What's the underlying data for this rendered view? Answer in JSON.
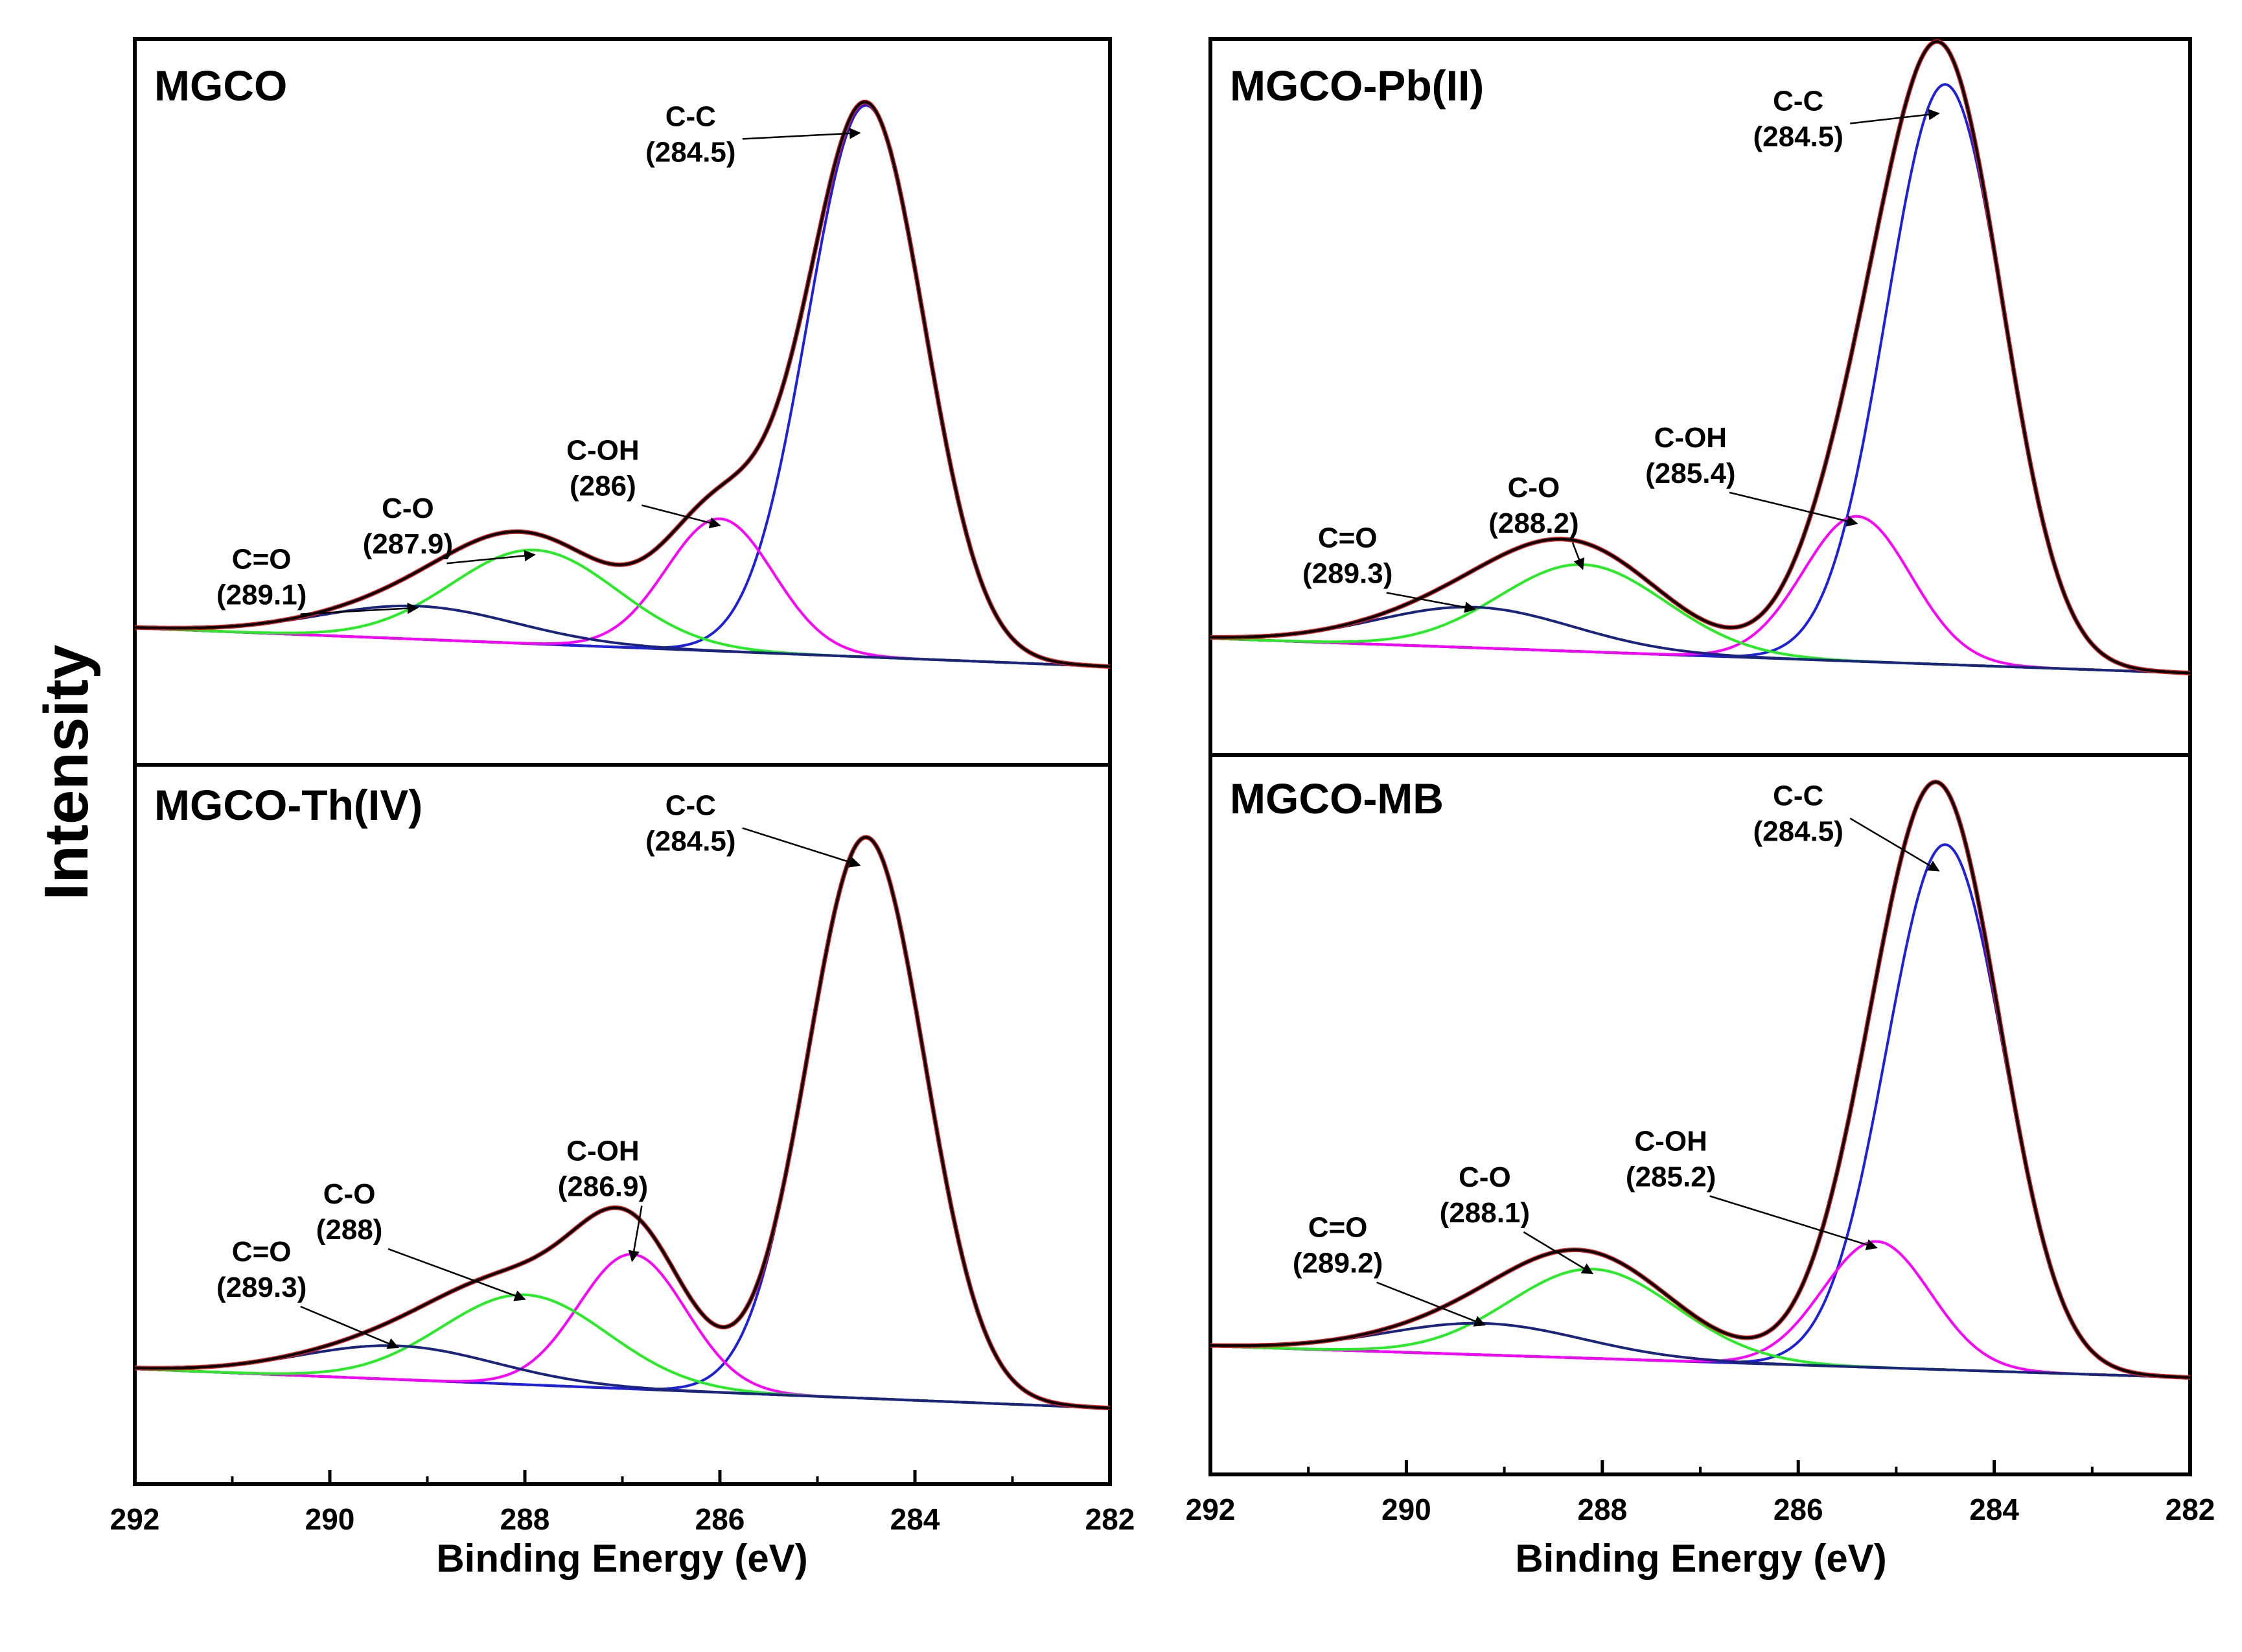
{
  "figure": {
    "ylabel": "Intensity",
    "xlabel": "Binding Energy (eV)"
  },
  "colors": {
    "envelope": "#000000",
    "fit": "#e41a1c",
    "baseline": "#1a237e",
    "C-C": "#1f1fe0",
    "C-OH": "#ff00ff",
    "C-O": "#22ee22",
    "C=O": "#1a237e"
  },
  "chart_data": [
    {
      "type": "line",
      "title": "MGCO",
      "xlabel": "Binding Energy (eV)",
      "ylabel": "Intensity",
      "xlim": [
        292,
        282
      ],
      "xticks": [
        292,
        290,
        288,
        286,
        284,
        282
      ],
      "xtick_labels": [
        "292",
        "290",
        "288",
        "286",
        "284",
        "282"
      ],
      "show_xticks": false,
      "baseline": [
        0.09,
        0.02
      ],
      "components": [
        {
          "name": "C-C",
          "center": 284.5,
          "amplitude": 1.0,
          "sigma": 0.6
        },
        {
          "name": "C-OH",
          "center": 286.0,
          "amplitude": 0.24,
          "sigma": 0.55
        },
        {
          "name": "C-O",
          "center": 287.9,
          "amplitude": 0.17,
          "sigma": 0.85
        },
        {
          "name": "C=O",
          "center": 289.1,
          "amplitude": 0.06,
          "sigma": 1.0
        }
      ],
      "annotations": [
        {
          "label": "C-C",
          "value": "(284.5)"
        },
        {
          "label": "C-OH",
          "value": "(286)"
        },
        {
          "label": "C-O",
          "value": "(287.9)"
        },
        {
          "label": "C=O",
          "value": "(289.1)"
        }
      ]
    },
    {
      "type": "line",
      "title": "MGCO-Pb(II)",
      "xlabel": "Binding Energy (eV)",
      "ylabel": "Intensity",
      "xlim": [
        292,
        282
      ],
      "xticks": [
        292,
        290,
        288,
        286,
        284,
        282
      ],
      "xtick_labels": [
        "292",
        "290",
        "288",
        "286",
        "284",
        "282"
      ],
      "show_xticks": false,
      "baseline": [
        0.09,
        0.03
      ],
      "components": [
        {
          "name": "C-C",
          "center": 284.5,
          "amplitude": 1.0,
          "sigma": 0.6
        },
        {
          "name": "C-OH",
          "center": 285.4,
          "amplitude": 0.25,
          "sigma": 0.55
        },
        {
          "name": "C-O",
          "center": 288.2,
          "amplitude": 0.15,
          "sigma": 0.85
        },
        {
          "name": "C=O",
          "center": 289.3,
          "amplitude": 0.07,
          "sigma": 1.0
        }
      ],
      "annotations": [
        {
          "label": "C-C",
          "value": "(284.5)"
        },
        {
          "label": "C-OH",
          "value": "(285.4)"
        },
        {
          "label": "C-O",
          "value": "(288.2)"
        },
        {
          "label": "C=O",
          "value": "(289.3)"
        }
      ]
    },
    {
      "type": "line",
      "title": "MGCO-Th(IV)",
      "xlabel": "Binding Energy (eV)",
      "ylabel": "Intensity",
      "xlim": [
        292,
        282
      ],
      "xticks": [
        292,
        290,
        288,
        286,
        284,
        282
      ],
      "xtick_labels": [
        "292",
        "290",
        "288",
        "286",
        "284",
        "282"
      ],
      "show_xticks": true,
      "baseline": [
        0.09,
        0.02
      ],
      "components": [
        {
          "name": "C-C",
          "center": 284.5,
          "amplitude": 1.0,
          "sigma": 0.6
        },
        {
          "name": "C-OH",
          "center": 286.9,
          "amplitude": 0.24,
          "sigma": 0.55
        },
        {
          "name": "C-O",
          "center": 288.0,
          "amplitude": 0.16,
          "sigma": 0.85
        },
        {
          "name": "C=O",
          "center": 289.3,
          "amplitude": 0.06,
          "sigma": 1.0
        }
      ],
      "annotations": [
        {
          "label": "C-C",
          "value": "(284.5)"
        },
        {
          "label": "C-OH",
          "value": "(286.9)"
        },
        {
          "label": "C-O",
          "value": "(288)"
        },
        {
          "label": "C=O",
          "value": "(289.3)"
        }
      ]
    },
    {
      "type": "line",
      "title": "MGCO-MB",
      "xlabel": "Binding Energy (eV)",
      "ylabel": "Intensity",
      "xlim": [
        292,
        282
      ],
      "xticks": [
        292,
        290,
        288,
        286,
        284,
        282
      ],
      "xtick_labels": [
        "292",
        "290",
        "288",
        "286",
        "284",
        "282"
      ],
      "show_xticks": true,
      "baseline": [
        0.08,
        0.02
      ],
      "components": [
        {
          "name": "C-C",
          "center": 284.5,
          "amplitude": 1.0,
          "sigma": 0.6
        },
        {
          "name": "C-OH",
          "center": 285.2,
          "amplitude": 0.24,
          "sigma": 0.55
        },
        {
          "name": "C-O",
          "center": 288.1,
          "amplitude": 0.17,
          "sigma": 0.85
        },
        {
          "name": "C=O",
          "center": 289.2,
          "amplitude": 0.06,
          "sigma": 1.0
        }
      ],
      "annotations": [
        {
          "label": "C-C",
          "value": "(284.5)"
        },
        {
          "label": "C-OH",
          "value": "(285.2)"
        },
        {
          "label": "C-O",
          "value": "(288.1)"
        },
        {
          "label": "C=O",
          "value": "(289.2)"
        }
      ]
    }
  ]
}
